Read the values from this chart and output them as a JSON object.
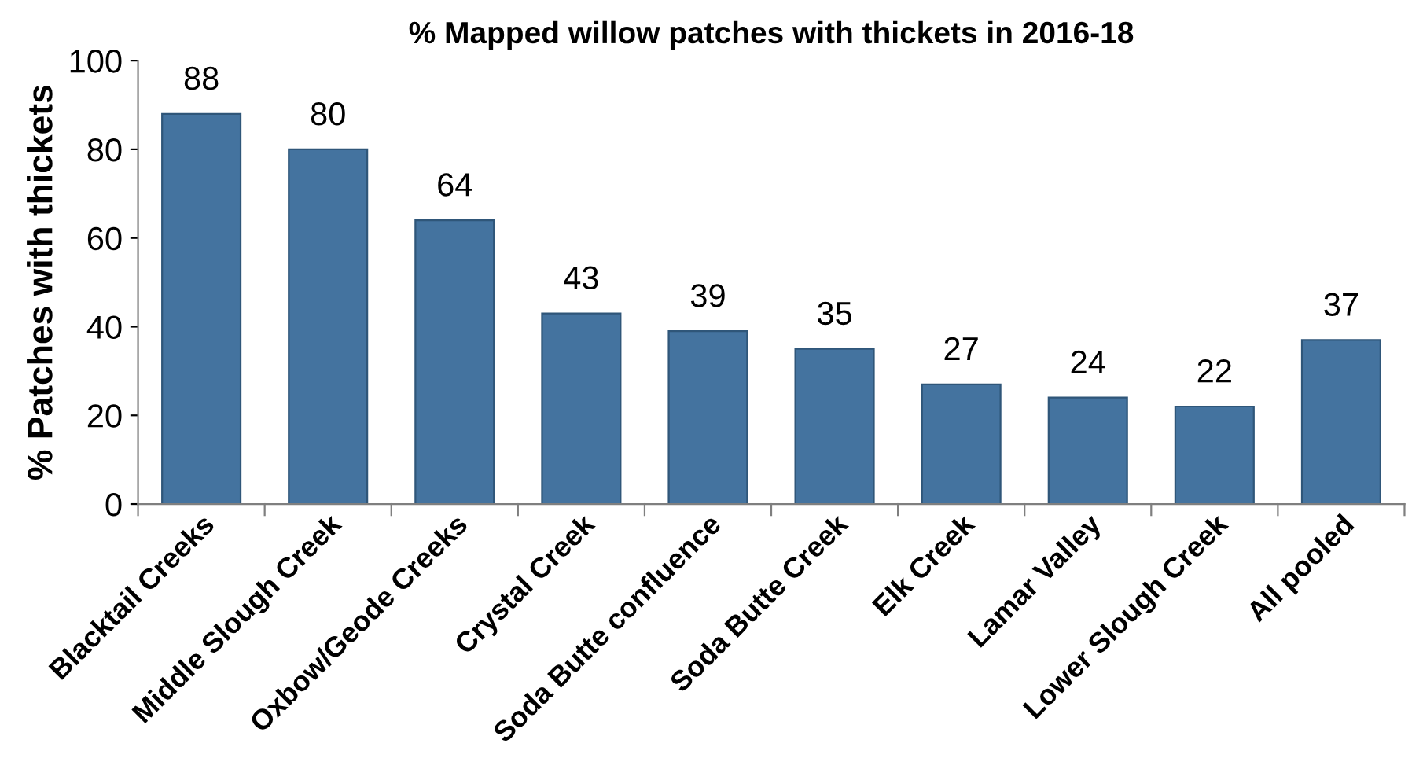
{
  "chart_data": {
    "type": "bar",
    "title": "% Mapped willow patches with thickets in 2016-18",
    "ylabel": "% Patches with thickets",
    "categories": [
      "Blacktail Creeks",
      "Middle Slough Creek",
      "Oxbow/Geode Creeks",
      "Crystal Creek",
      "Soda Butte confluence",
      "Soda Butte Creek",
      "Elk Creek",
      "Lamar Valley",
      "Lower Slough Creek",
      "All pooled"
    ],
    "values": [
      88,
      80,
      64,
      43,
      39,
      35,
      27,
      24,
      22,
      37
    ],
    "color": "#44739f",
    "data_labels": true,
    "ylim": [
      0,
      100
    ],
    "yticks": [
      0,
      20,
      40,
      60,
      80,
      100
    ],
    "grid": false,
    "legend": false
  }
}
